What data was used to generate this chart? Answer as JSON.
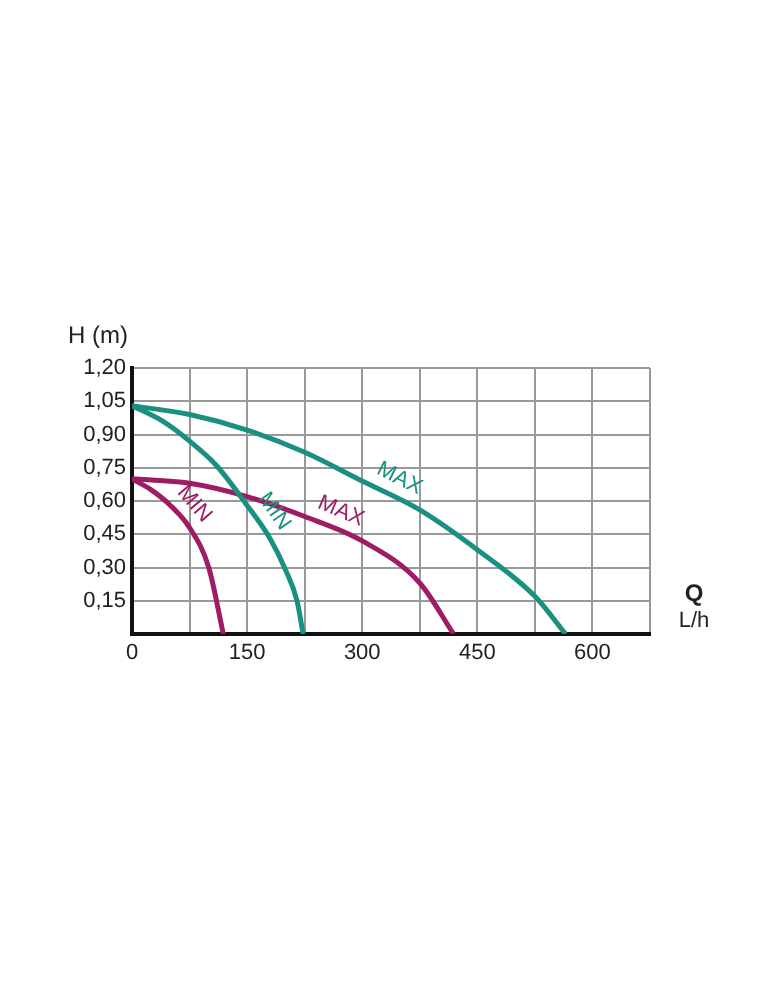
{
  "chart_data": {
    "type": "line",
    "xlabel": "Q L/h",
    "ylabel": "H (m)",
    "series": [
      {
        "name": "MIN",
        "color": "#1a9080",
        "x": [
          0,
          40,
          75,
          110,
          150,
          180,
          200,
          215,
          223
        ],
        "values": [
          1.03,
          0.96,
          0.87,
          0.76,
          0.58,
          0.43,
          0.29,
          0.15,
          0
        ]
      },
      {
        "name": "MAX",
        "color": "#1a9080",
        "x": [
          0,
          75,
          150,
          225,
          300,
          375,
          450,
          525,
          565
        ],
        "values": [
          1.03,
          0.99,
          0.92,
          0.82,
          0.69,
          0.56,
          0.38,
          0.17,
          0
        ]
      },
      {
        "name": "MIN",
        "color": "#9e1c64",
        "x": [
          0,
          25,
          50,
          75,
          100,
          119
        ],
        "values": [
          0.7,
          0.65,
          0.58,
          0.48,
          0.3,
          0
        ]
      },
      {
        "name": "MAX",
        "color": "#9e1c64",
        "x": [
          0,
          75,
          150,
          225,
          300,
          375,
          419
        ],
        "values": [
          0.7,
          0.68,
          0.62,
          0.53,
          0.42,
          0.23,
          0
        ]
      }
    ],
    "xlim": [
      0,
      675
    ],
    "xticks": [
      0,
      {
        "value": 75,
        "label": null
      },
      150,
      {
        "value": 225,
        "label": null
      },
      300,
      {
        "value": 375,
        "label": null
      },
      450,
      {
        "value": 525,
        "label": null
      },
      600,
      {
        "value": 675,
        "label": null
      }
    ],
    "ylim": [
      0,
      1.2
    ],
    "yticks": [
      {
        "value": 0,
        "label": null
      },
      {
        "value": 0.15,
        "label": "0,15"
      },
      {
        "value": 0.3,
        "label": "0,30"
      },
      {
        "value": 0.45,
        "label": "0,45"
      },
      {
        "value": 0.6,
        "label": "0,60"
      },
      {
        "value": 0.75,
        "label": "0,75"
      },
      {
        "value": 0.9,
        "label": "0,90"
      },
      {
        "value": 1.05,
        "label": "1,05"
      },
      {
        "value": 1.2,
        "label": "1,20"
      }
    ],
    "grid": true,
    "legend": false,
    "marker": "none",
    "line_style": "solid"
  }
}
